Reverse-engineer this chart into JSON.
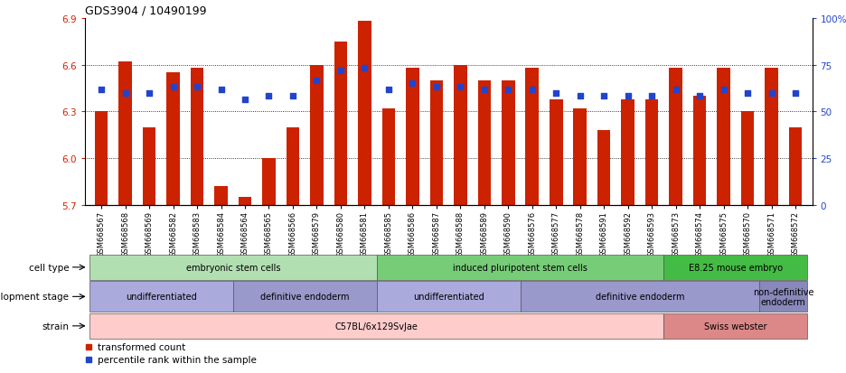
{
  "title": "GDS3904 / 10490199",
  "samples": [
    "GSM668567",
    "GSM668568",
    "GSM668569",
    "GSM668582",
    "GSM668583",
    "GSM668584",
    "GSM668564",
    "GSM668565",
    "GSM668566",
    "GSM668579",
    "GSM668580",
    "GSM668581",
    "GSM668585",
    "GSM668586",
    "GSM668587",
    "GSM668588",
    "GSM668589",
    "GSM668590",
    "GSM668576",
    "GSM668577",
    "GSM668578",
    "GSM668591",
    "GSM668592",
    "GSM668593",
    "GSM668573",
    "GSM668574",
    "GSM668575",
    "GSM668570",
    "GSM668571",
    "GSM668572"
  ],
  "bar_values": [
    6.3,
    6.62,
    6.2,
    6.55,
    6.58,
    5.82,
    5.75,
    6.0,
    6.2,
    6.6,
    6.75,
    6.88,
    6.32,
    6.58,
    6.5,
    6.6,
    6.5,
    6.5,
    6.58,
    6.38,
    6.32,
    6.18,
    6.38,
    6.38,
    6.58,
    6.4,
    6.58,
    6.3,
    6.58,
    6.2
  ],
  "blue_values": [
    6.44,
    6.42,
    6.42,
    6.46,
    6.46,
    6.44,
    6.38,
    6.4,
    6.4,
    6.5,
    6.56,
    6.58,
    6.44,
    6.48,
    6.46,
    6.46,
    6.44,
    6.44,
    6.44,
    6.42,
    6.4,
    6.4,
    6.4,
    6.4,
    6.44,
    6.4,
    6.44,
    6.42,
    6.42,
    6.42
  ],
  "bar_color": "#cc2200",
  "blue_color": "#2244cc",
  "ymin": 5.7,
  "ymax": 6.9,
  "y_left_ticks": [
    5.7,
    6.0,
    6.3,
    6.6,
    6.9
  ],
  "y_right_ticks": [
    0,
    25,
    50,
    75,
    100
  ],
  "cell_type_groups": [
    {
      "label": "embryonic stem cells",
      "start": 0,
      "end": 11,
      "color": "#b2dfb2"
    },
    {
      "label": "induced pluripotent stem cells",
      "start": 12,
      "end": 23,
      "color": "#77cc77"
    },
    {
      "label": "E8.25 mouse embryo",
      "start": 24,
      "end": 29,
      "color": "#44bb44"
    }
  ],
  "dev_stage_groups": [
    {
      "label": "undifferentiated",
      "start": 0,
      "end": 5,
      "color": "#aaaadd"
    },
    {
      "label": "definitive endoderm",
      "start": 6,
      "end": 11,
      "color": "#9999cc"
    },
    {
      "label": "undifferentiated",
      "start": 12,
      "end": 17,
      "color": "#aaaadd"
    },
    {
      "label": "definitive endoderm",
      "start": 18,
      "end": 27,
      "color": "#9999cc"
    },
    {
      "label": "non-definitive\nendoderm",
      "start": 28,
      "end": 29,
      "color": "#8888bb"
    }
  ],
  "strain_groups": [
    {
      "label": "C57BL/6x129SvJae",
      "start": 0,
      "end": 23,
      "color": "#ffcccc"
    },
    {
      "label": "Swiss webster",
      "start": 24,
      "end": 29,
      "color": "#dd8888"
    }
  ],
  "row_labels": [
    "cell type",
    "development stage",
    "strain"
  ],
  "legend": [
    {
      "label": "transformed count",
      "color": "#cc2200"
    },
    {
      "label": "percentile rank within the sample",
      "color": "#2244cc"
    }
  ]
}
